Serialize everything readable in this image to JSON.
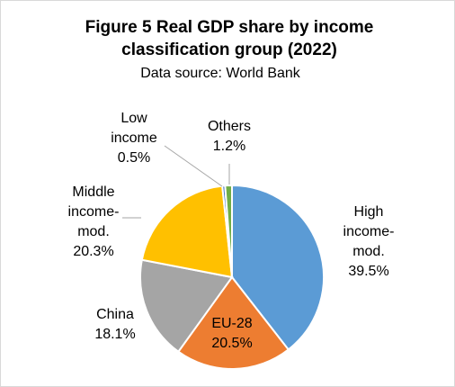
{
  "chart_data": {
    "type": "pie",
    "title_lines": [
      "Figure 5 Real GDP share by income",
      "classification group  (2022)"
    ],
    "subtitle": "Data source: World Bank",
    "slices": [
      {
        "label_lines": [
          "High",
          "income-",
          "mod."
        ],
        "value": 39.5,
        "value_text": "39.5%",
        "color": "#5B9BD5"
      },
      {
        "label_lines": [
          "EU-28"
        ],
        "value": 20.5,
        "value_text": "20.5%",
        "color": "#ED7D31"
      },
      {
        "label_lines": [
          "China"
        ],
        "value": 18.1,
        "value_text": "18.1%",
        "color": "#A5A5A5"
      },
      {
        "label_lines": [
          "Middle",
          "income-",
          "mod."
        ],
        "value": 20.3,
        "value_text": "20.3%",
        "color": "#FFC000"
      },
      {
        "label_lines": [
          "Low",
          "income"
        ],
        "value": 0.5,
        "value_text": "0.5%",
        "color": "#4472C4"
      },
      {
        "label_lines": [
          "Others"
        ],
        "value": 1.2,
        "value_text": "1.2%",
        "color": "#70AD47"
      }
    ]
  }
}
